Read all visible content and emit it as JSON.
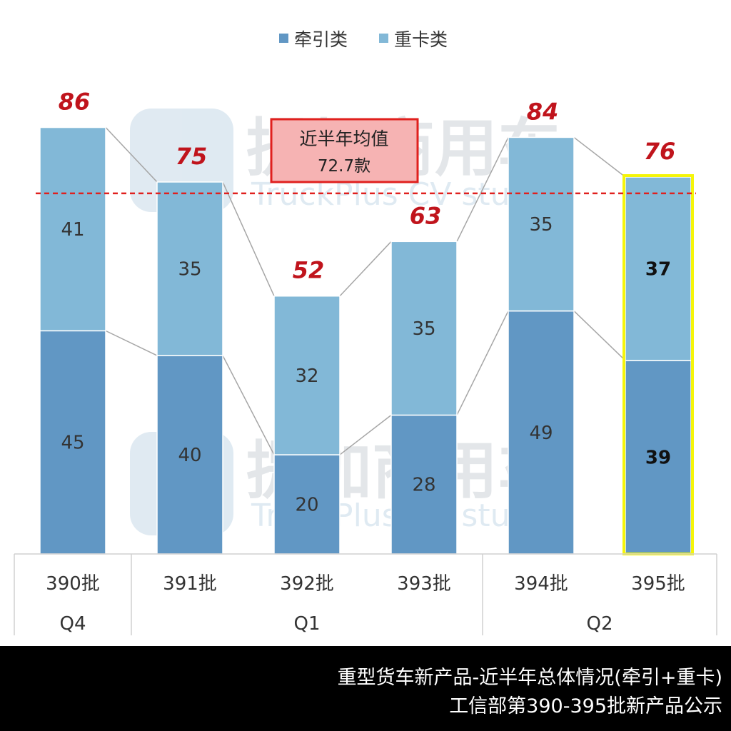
{
  "chart_data": {
    "type": "bar",
    "stacked": true,
    "categories": [
      "390批",
      "391批",
      "392批",
      "393批",
      "394批",
      "395批"
    ],
    "groups": [
      {
        "label": "Q4",
        "span": 1
      },
      {
        "label": "Q1",
        "span": 3
      },
      {
        "label": "Q2",
        "span": 2
      }
    ],
    "series": [
      {
        "name": "牵引类",
        "color": "#6197c4",
        "values": [
          45,
          40,
          20,
          28,
          49,
          39
        ]
      },
      {
        "name": "重卡类",
        "color": "#82b8d7",
        "values": [
          41,
          35,
          32,
          35,
          35,
          37
        ]
      }
    ],
    "totals": [
      86,
      75,
      52,
      63,
      84,
      76
    ],
    "average": {
      "label": "近半年均值",
      "value_text": "72.7款",
      "value": 72.7
    },
    "highlight_index": 5,
    "ylim": [
      0,
      95
    ],
    "legend_position": "top",
    "grid": false
  },
  "watermark": {
    "brand": "提加商用车",
    "subtitle": "TruckPlus CV studio"
  },
  "footer": {
    "line1": "重型货车新产品-近半年总体情况(牵引+重卡)",
    "line2": "工信部第390-395批新产品公示"
  }
}
